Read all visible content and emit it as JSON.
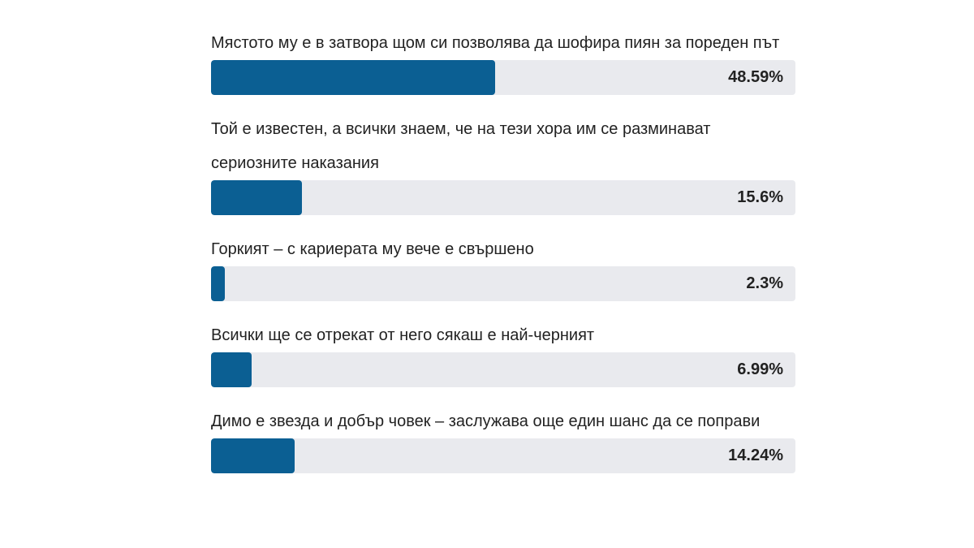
{
  "chart_data": {
    "type": "bar",
    "orientation": "horizontal",
    "categories": [
      "Мястото му е в затвора щом си позволява да шофира пиян за пореден път",
      "Той е известен, а всички знаем, че на тези хора им се разминават сериозните наказания",
      "Горкият – с кариерата му вече е свършено",
      "Всички ще се отрекат от него сякаш е най-черният",
      "Димо е звезда и добър човек – заслужава още един шанс да се поправи"
    ],
    "values": [
      48.59,
      15.6,
      2.3,
      6.99,
      14.24
    ],
    "value_labels": [
      "48.59%",
      "15.6%",
      "2.3%",
      "6.99%",
      "14.24%"
    ],
    "xlim": [
      0,
      100
    ],
    "color": "#0b5f93",
    "track_color": "#e9eaee"
  }
}
